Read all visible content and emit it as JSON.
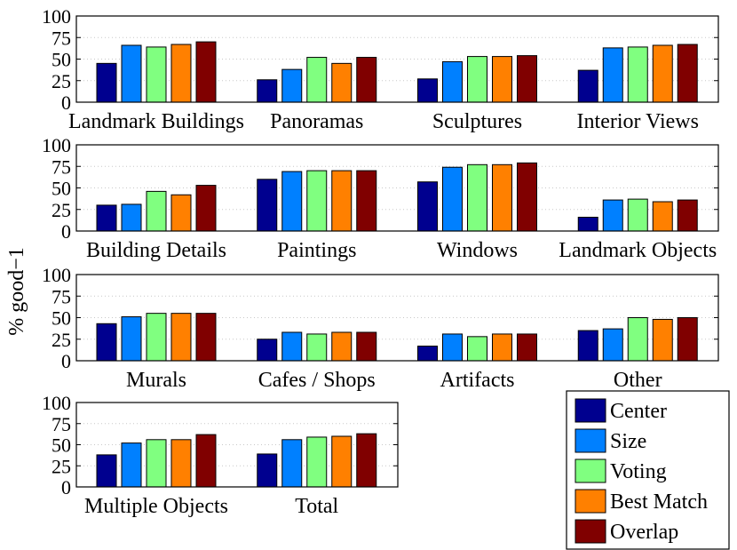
{
  "chart_data": {
    "type": "bar",
    "ylabel": "% good−1",
    "ylim": [
      0,
      100
    ],
    "yticks": [
      "0",
      "25",
      "50",
      "75",
      "100"
    ],
    "grid": "horizontal dotted",
    "legend_position": "bottom-right",
    "series": [
      {
        "name": "Center",
        "color": "#00008f"
      },
      {
        "name": "Size",
        "color": "#0080ff"
      },
      {
        "name": "Voting",
        "color": "#80ff80"
      },
      {
        "name": "Best Match",
        "color": "#ff8000"
      },
      {
        "name": "Overlap",
        "color": "#800000"
      }
    ],
    "panels": [
      {
        "groups": [
          {
            "label": "Landmark Buildings",
            "values": [
              45,
              66,
              64,
              67,
              70
            ]
          },
          {
            "label": "Panoramas",
            "values": [
              26,
              38,
              52,
              45,
              52
            ]
          },
          {
            "label": "Sculptures",
            "values": [
              27,
              47,
              53,
              53,
              54
            ]
          },
          {
            "label": "Interior Views",
            "values": [
              37,
              63,
              64,
              66,
              67
            ]
          }
        ]
      },
      {
        "groups": [
          {
            "label": "Building Details",
            "values": [
              30,
              31,
              46,
              42,
              53
            ]
          },
          {
            "label": "Paintings",
            "values": [
              60,
              69,
              70,
              70,
              70
            ]
          },
          {
            "label": "Windows",
            "values": [
              57,
              74,
              77,
              77,
              79
            ]
          },
          {
            "label": "Landmark Objects",
            "values": [
              16,
              36,
              37,
              34,
              36
            ]
          }
        ]
      },
      {
        "groups": [
          {
            "label": "Murals",
            "values": [
              43,
              51,
              55,
              55,
              55
            ]
          },
          {
            "label": "Cafes / Shops",
            "values": [
              25,
              33,
              31,
              33,
              33
            ]
          },
          {
            "label": "Artifacts",
            "values": [
              17,
              31,
              28,
              31,
              31
            ]
          },
          {
            "label": "Other",
            "values": [
              35,
              37,
              50,
              48,
              50
            ]
          }
        ]
      },
      {
        "groups": [
          {
            "label": "Multiple Objects",
            "values": [
              38,
              52,
              56,
              56,
              62
            ]
          },
          {
            "label": "Total",
            "values": [
              39,
              56,
              59,
              60,
              63
            ]
          }
        ]
      }
    ]
  }
}
